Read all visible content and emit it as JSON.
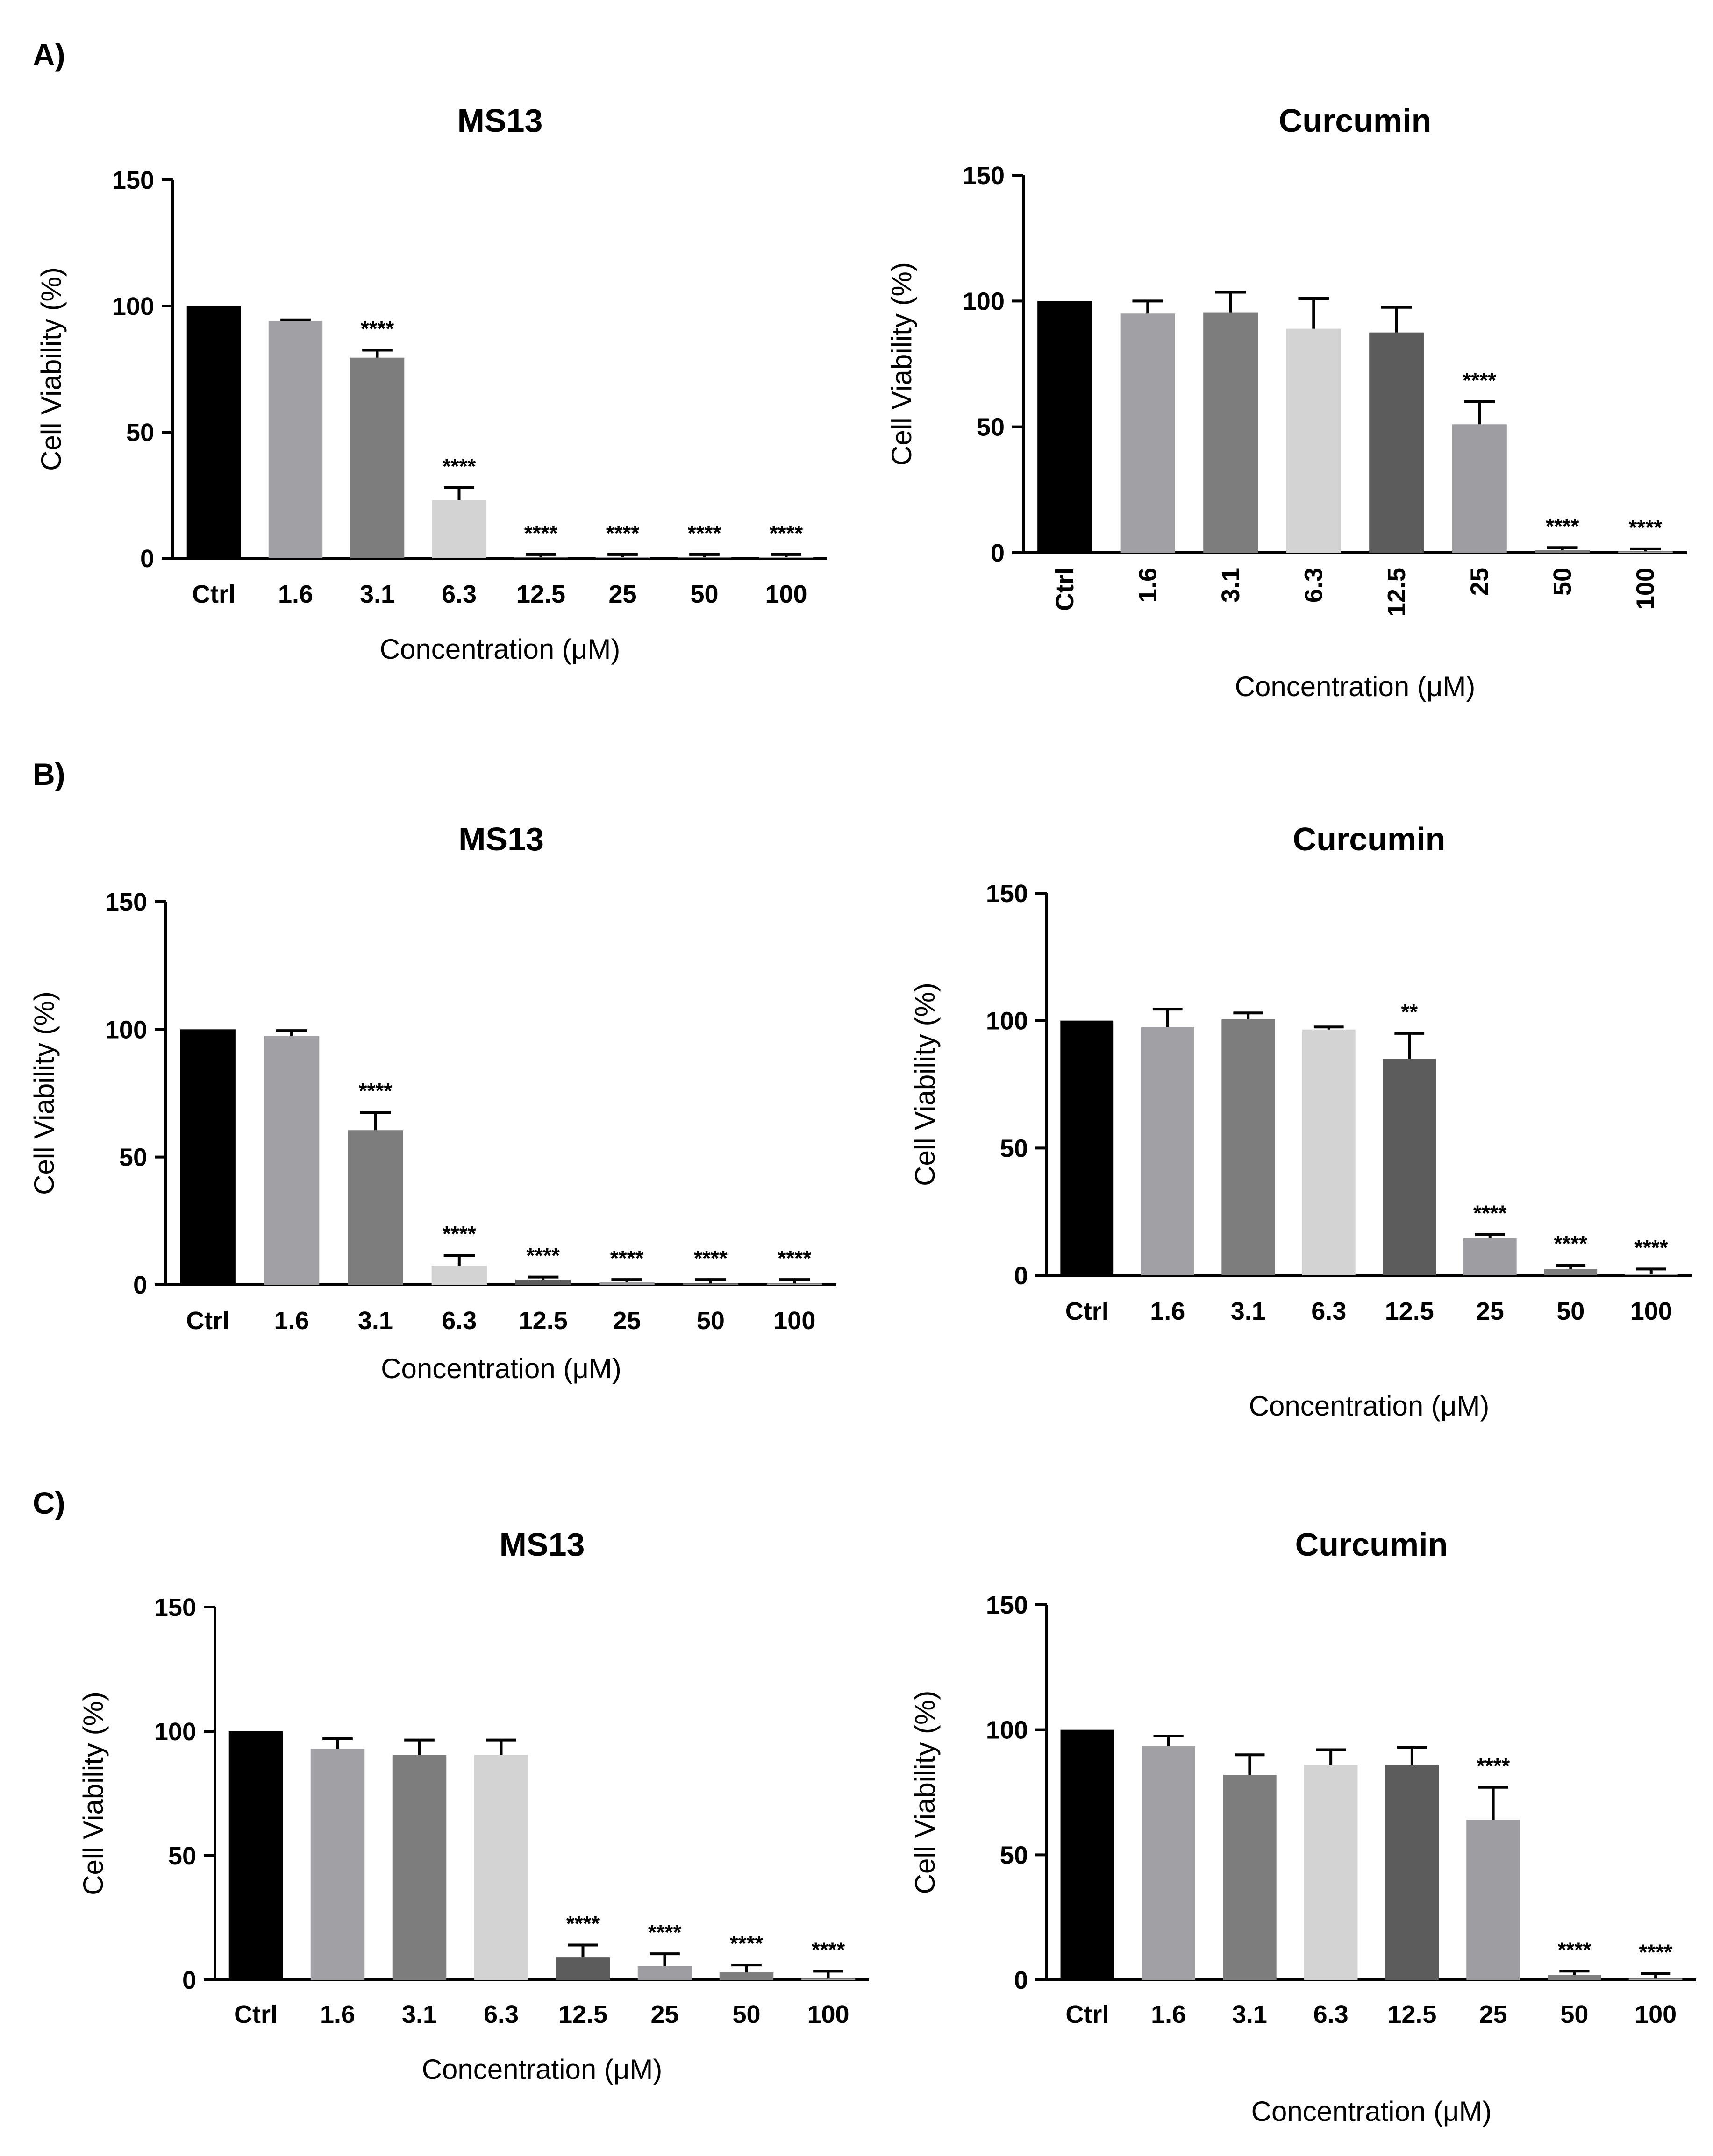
{
  "panels": [
    {
      "letter": "A)",
      "charts": [
        {
          "type": "bar",
          "title": "MS13",
          "xlabel": "Concentration (μM)",
          "ylabel": "Cell Viability (%)",
          "ylim": [
            0,
            150
          ],
          "yticks": [
            "0",
            "50",
            "100",
            "150"
          ],
          "categories": [
            "Ctrl",
            "1.6",
            "3.1",
            "6.3",
            "12.5",
            "25",
            "50",
            "100"
          ],
          "values": [
            100,
            94,
            79.5,
            23,
            0.5,
            0.5,
            0.5,
            0.5
          ],
          "errors": [
            0,
            0.5,
            3,
            5,
            1,
            1,
            1,
            1
          ],
          "significance": [
            "",
            "",
            "****",
            "****",
            "****",
            "****",
            "****",
            "****"
          ],
          "bar_colors": [
            "#000000",
            "#a0a0a5",
            "#7d7d7d",
            "#d3d3d3",
            "#5c5c5c",
            "#9d9da2",
            "#7d7d7d",
            "#a8a8a8"
          ],
          "tick_rotation": 0
        },
        {
          "type": "bar",
          "title": "Curcumin",
          "xlabel": "Concentration (μM)",
          "ylabel": "Cell Viability (%)",
          "ylim": [
            0,
            150
          ],
          "yticks": [
            "0",
            "50",
            "100",
            "150"
          ],
          "categories": [
            "Ctrl",
            "1.6",
            "3.1",
            "6.3",
            "12.5",
            "25",
            "50",
            "100"
          ],
          "values": [
            100,
            95,
            95.5,
            89,
            87.5,
            51,
            1,
            0.5
          ],
          "errors": [
            0,
            5,
            8,
            12,
            10,
            9,
            1,
            1
          ],
          "significance": [
            "",
            "",
            "",
            "",
            "",
            "****",
            "****",
            "****"
          ],
          "bar_colors": [
            "#000000",
            "#a0a0a5",
            "#7d7d7d",
            "#d3d3d3",
            "#5c5c5c",
            "#9d9da2",
            "#7d7d7d",
            "#a8a8a8"
          ],
          "tick_rotation": -90
        }
      ]
    },
    {
      "letter": "B)",
      "charts": [
        {
          "type": "bar",
          "title": "MS13",
          "xlabel": "Concentration (μM)",
          "ylabel": "Cell Viability (%)",
          "ylim": [
            0,
            150
          ],
          "yticks": [
            "0",
            "50",
            "100",
            "150"
          ],
          "categories": [
            "Ctrl",
            "1.6",
            "3.1",
            "6.3",
            "12.5",
            "25",
            "50",
            "100"
          ],
          "values": [
            100,
            97.5,
            60.5,
            7.5,
            2,
            1,
            0.5,
            0.5
          ],
          "errors": [
            0,
            2,
            7,
            4,
            1,
            1,
            1.5,
            1.5
          ],
          "significance": [
            "",
            "",
            "****",
            "****",
            "****",
            "****",
            "****",
            "****"
          ],
          "bar_colors": [
            "#000000",
            "#a0a0a5",
            "#7d7d7d",
            "#d3d3d3",
            "#5c5c5c",
            "#9d9da2",
            "#7d7d7d",
            "#a8a8a8"
          ],
          "tick_rotation": 0
        },
        {
          "type": "bar",
          "title": "Curcumin",
          "xlabel": "Concentration (μM)",
          "ylabel": "Cell Viability (%)",
          "ylim": [
            0,
            150
          ],
          "yticks": [
            "0",
            "50",
            "100",
            "150"
          ],
          "categories": [
            "Ctrl",
            "1.6",
            "3.1",
            "6.3",
            "12.5",
            "25",
            "50",
            "100"
          ],
          "values": [
            100,
            97.5,
            100.5,
            96.5,
            85,
            14.5,
            2.5,
            0.5
          ],
          "errors": [
            0,
            7,
            2.5,
            1,
            10,
            1.5,
            1.5,
            2
          ],
          "significance": [
            "",
            "",
            "",
            "",
            "**",
            "****",
            "****",
            "****"
          ],
          "bar_colors": [
            "#000000",
            "#a0a0a5",
            "#7d7d7d",
            "#d3d3d3",
            "#5c5c5c",
            "#9d9da2",
            "#7d7d7d",
            "#a8a8a8"
          ],
          "tick_rotation": 0
        }
      ]
    },
    {
      "letter": "C)",
      "charts": [
        {
          "type": "bar",
          "title": "MS13",
          "xlabel": "Concentration (μM)",
          "ylabel": "Cell Viability (%)",
          "ylim": [
            0,
            150
          ],
          "yticks": [
            "0",
            "50",
            "100",
            "150"
          ],
          "categories": [
            "Ctrl",
            "1.6",
            "3.1",
            "6.3",
            "12.5",
            "25",
            "50",
            "100"
          ],
          "values": [
            100,
            93,
            90.5,
            90.5,
            9,
            5.5,
            3,
            0.5
          ],
          "errors": [
            0,
            4,
            6,
            6,
            5,
            5,
            3,
            3
          ],
          "significance": [
            "",
            "",
            "",
            "",
            "****",
            "****",
            "****",
            "****"
          ],
          "bar_colors": [
            "#000000",
            "#a0a0a5",
            "#7d7d7d",
            "#d3d3d3",
            "#5c5c5c",
            "#9d9da2",
            "#7d7d7d",
            "#a8a8a8"
          ],
          "tick_rotation": 0
        },
        {
          "type": "bar",
          "title": "Curcumin",
          "xlabel": "Concentration (μM)",
          "ylabel": "Cell Viability (%)",
          "ylim": [
            0,
            150
          ],
          "yticks": [
            "0",
            "50",
            "100",
            "150"
          ],
          "categories": [
            "Ctrl",
            "1.6",
            "3.1",
            "6.3",
            "12.5",
            "25",
            "50",
            "100"
          ],
          "values": [
            100,
            93.5,
            82,
            86,
            86,
            64,
            2,
            0.5
          ],
          "errors": [
            0,
            4,
            8,
            6,
            7,
            13,
            1.5,
            2
          ],
          "significance": [
            "",
            "",
            "",
            "",
            "",
            "****",
            "****",
            "****"
          ],
          "bar_colors": [
            "#000000",
            "#a0a0a5",
            "#7d7d7d",
            "#d3d3d3",
            "#5c5c5c",
            "#9d9da2",
            "#7d7d7d",
            "#a8a8a8"
          ],
          "tick_rotation": 0
        }
      ]
    }
  ]
}
